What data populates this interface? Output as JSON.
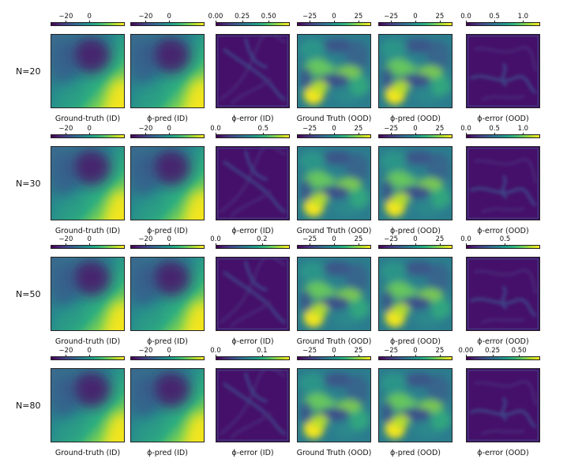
{
  "colors": {
    "viridis": [
      "#440154",
      "#482878",
      "#3e4989",
      "#31688e",
      "#26828e",
      "#1f9e89",
      "#35b779",
      "#6ece58",
      "#b5de2b",
      "#fde725"
    ]
  },
  "chart_data": {
    "type": "heatmap",
    "rows": [
      {
        "label": "N=20",
        "panels": [
          {
            "caption": "Ground-truth (ID)",
            "field": "id",
            "cbar_ticks": [
              "−20",
              "0"
            ],
            "cbar_tick_values": [
              -20,
              0
            ],
            "cbar_range": [
              -33,
              30
            ]
          },
          {
            "caption": "ϕ-pred (ID)",
            "field": "id",
            "cbar_ticks": [
              "−20",
              "0"
            ],
            "cbar_tick_values": [
              -20,
              0
            ],
            "cbar_range": [
              -33,
              30
            ]
          },
          {
            "caption": "ϕ-error (ID)",
            "field": "err_id",
            "cbar_ticks": [
              "0.00",
              "0.25",
              "0.50"
            ],
            "cbar_tick_values": [
              0,
              0.25,
              0.5
            ],
            "cbar_range": [
              0,
              0.7
            ]
          },
          {
            "caption": "Ground Truth (OOD)",
            "field": "ood",
            "cbar_ticks": [
              "−25",
              "0",
              "25"
            ],
            "cbar_tick_values": [
              -25,
              0,
              25
            ],
            "cbar_range": [
              -38,
              38
            ]
          },
          {
            "caption": "ϕ-pred (OOD)",
            "field": "ood",
            "cbar_ticks": [
              "−25",
              "0",
              "25"
            ],
            "cbar_tick_values": [
              -25,
              0,
              25
            ],
            "cbar_range": [
              -38,
              38
            ]
          },
          {
            "caption": "ϕ-error (OOD)",
            "field": "err_ood",
            "cbar_ticks": [
              "0.0",
              "0.5",
              "1.0"
            ],
            "cbar_tick_values": [
              0,
              0.5,
              1.0
            ],
            "cbar_range": [
              0,
              1.3
            ]
          }
        ]
      },
      {
        "label": "N=30",
        "panels": [
          {
            "caption": "Ground-truth (ID)",
            "field": "id",
            "cbar_ticks": [
              "−20",
              "0"
            ],
            "cbar_tick_values": [
              -20,
              0
            ],
            "cbar_range": [
              -33,
              30
            ]
          },
          {
            "caption": "ϕ-pred (ID)",
            "field": "id",
            "cbar_ticks": [
              "−20",
              "0"
            ],
            "cbar_tick_values": [
              -20,
              0
            ],
            "cbar_range": [
              -33,
              30
            ]
          },
          {
            "caption": "ϕ-error (ID)",
            "field": "err_id",
            "cbar_ticks": [
              "0.0",
              "0.5"
            ],
            "cbar_tick_values": [
              0,
              0.5
            ],
            "cbar_range": [
              0,
              0.78
            ]
          },
          {
            "caption": "Ground Truth (OOD)",
            "field": "ood",
            "cbar_ticks": [
              "−25",
              "0",
              "25"
            ],
            "cbar_tick_values": [
              -25,
              0,
              25
            ],
            "cbar_range": [
              -38,
              38
            ]
          },
          {
            "caption": "ϕ-pred (OOD)",
            "field": "ood",
            "cbar_ticks": [
              "−25",
              "0",
              "25"
            ],
            "cbar_tick_values": [
              -25,
              0,
              25
            ],
            "cbar_range": [
              -38,
              38
            ]
          },
          {
            "caption": "ϕ-error (OOD)",
            "field": "err_ood",
            "cbar_ticks": [
              "0.0",
              "0.5",
              "1.0"
            ],
            "cbar_tick_values": [
              0,
              0.5,
              1.0
            ],
            "cbar_range": [
              0,
              1.3
            ]
          }
        ]
      },
      {
        "label": "N=50",
        "panels": [
          {
            "caption": "Ground-truth (ID)",
            "field": "id",
            "cbar_ticks": [
              "−20",
              "0"
            ],
            "cbar_tick_values": [
              -20,
              0
            ],
            "cbar_range": [
              -33,
              30
            ]
          },
          {
            "caption": "ϕ-pred (ID)",
            "field": "id",
            "cbar_ticks": [
              "−20",
              "0"
            ],
            "cbar_tick_values": [
              -20,
              0
            ],
            "cbar_range": [
              -33,
              30
            ]
          },
          {
            "caption": "ϕ-error (ID)",
            "field": "err_id",
            "cbar_ticks": [
              "0.0",
              "0.2"
            ],
            "cbar_tick_values": [
              0,
              0.2
            ],
            "cbar_range": [
              0,
              0.32
            ]
          },
          {
            "caption": "Ground Truth (OOD)",
            "field": "ood",
            "cbar_ticks": [
              "−25",
              "0",
              "25"
            ],
            "cbar_tick_values": [
              -25,
              0,
              25
            ],
            "cbar_range": [
              -38,
              38
            ]
          },
          {
            "caption": "ϕ-pred (OOD)",
            "field": "ood",
            "cbar_ticks": [
              "−25",
              "0",
              "25"
            ],
            "cbar_tick_values": [
              -25,
              0,
              25
            ],
            "cbar_range": [
              -38,
              38
            ]
          },
          {
            "caption": "ϕ-error (OOD)",
            "field": "err_ood",
            "cbar_ticks": [
              "0.0",
              "0.5"
            ],
            "cbar_tick_values": [
              0,
              0.5
            ],
            "cbar_range": [
              0,
              0.95
            ]
          }
        ]
      },
      {
        "label": "N=80",
        "panels": [
          {
            "caption": "Ground-truth (ID)",
            "field": "id",
            "cbar_ticks": [
              "−20",
              "0"
            ],
            "cbar_tick_values": [
              -20,
              0
            ],
            "cbar_range": [
              -33,
              30
            ]
          },
          {
            "caption": "ϕ-pred (ID)",
            "field": "id",
            "cbar_ticks": [
              "−20",
              "0"
            ],
            "cbar_tick_values": [
              -20,
              0
            ],
            "cbar_range": [
              -33,
              30
            ]
          },
          {
            "caption": "ϕ-error (ID)",
            "field": "err_id",
            "cbar_ticks": [
              "0.0",
              "0.1"
            ],
            "cbar_tick_values": [
              0,
              0.1
            ],
            "cbar_range": [
              0,
              0.16
            ]
          },
          {
            "caption": "Ground Truth (OOD)",
            "field": "ood",
            "cbar_ticks": [
              "−25",
              "0",
              "25"
            ],
            "cbar_tick_values": [
              -25,
              0,
              25
            ],
            "cbar_range": [
              -38,
              38
            ]
          },
          {
            "caption": "ϕ-pred (OOD)",
            "field": "ood",
            "cbar_ticks": [
              "−25",
              "0",
              "25"
            ],
            "cbar_tick_values": [
              -25,
              0,
              25
            ],
            "cbar_range": [
              -38,
              38
            ]
          },
          {
            "caption": "ϕ-error (OOD)",
            "field": "err_ood",
            "cbar_ticks": [
              "0.00",
              "0.25",
              "0.50"
            ],
            "cbar_tick_values": [
              0,
              0.25,
              0.5
            ],
            "cbar_range": [
              0,
              0.7
            ]
          }
        ]
      }
    ]
  }
}
